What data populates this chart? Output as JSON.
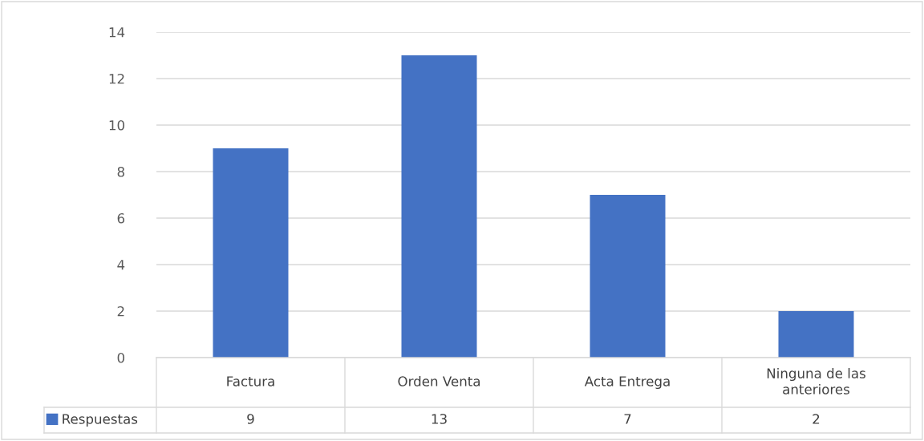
{
  "chart_data": {
    "type": "bar",
    "categories": [
      "Factura",
      "Orden Venta",
      "Acta Entrega",
      "Ninguna de las anteriores"
    ],
    "series": [
      {
        "name": "Respuestas",
        "color": "#4472c4",
        "values": [
          9,
          13,
          7,
          2
        ]
      }
    ],
    "ylim": [
      0,
      14
    ],
    "yticks": [
      0,
      2,
      4,
      6,
      8,
      10,
      12,
      14
    ],
    "grid": "y",
    "legend": "bottom",
    "data_labels": true
  }
}
